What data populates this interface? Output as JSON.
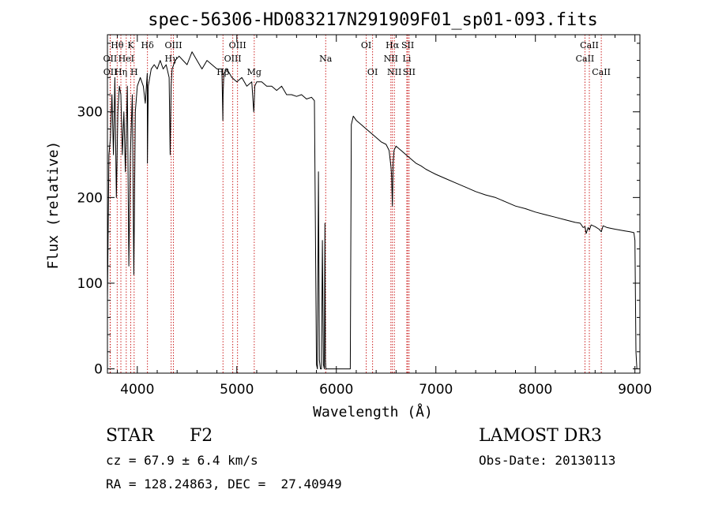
{
  "chart_data": {
    "type": "line",
    "title": "spec-56306-HD083217N291909F01_sp01-093.fits",
    "xlabel": "Wavelength (Å)",
    "ylabel": "Flux (relative)",
    "xlim": [
      3700,
      9050
    ],
    "ylim": [
      -5,
      390
    ],
    "x_ticks": [
      4000,
      5000,
      6000,
      7000,
      8000,
      9000
    ],
    "x_tick_labels": [
      "4000",
      "5000",
      "6000",
      "7000",
      "8000",
      "9000"
    ],
    "y_ticks": [
      0,
      100,
      200,
      300
    ],
    "y_tick_labels": [
      "0",
      "100",
      "200",
      "300"
    ],
    "grid": false,
    "series": [
      {
        "name": "flux",
        "color": "#000000",
        "x": [
          3700,
          3715,
          3730,
          3745,
          3760,
          3775,
          3790,
          3805,
          3820,
          3835,
          3850,
          3865,
          3880,
          3900,
          3915,
          3930,
          3950,
          3965,
          3980,
          4000,
          4030,
          4060,
          4080,
          4100,
          4102,
          4110,
          4140,
          4170,
          4200,
          4230,
          4260,
          4290,
          4320,
          4330,
          4340,
          4350,
          4380,
          4420,
          4460,
          4500,
          4550,
          4600,
          4650,
          4700,
          4750,
          4800,
          4850,
          4860,
          4862,
          4870,
          4900,
          4950,
          5000,
          5050,
          5100,
          5150,
          5170,
          5175,
          5180,
          5200,
          5250,
          5300,
          5350,
          5400,
          5450,
          5500,
          5550,
          5600,
          5650,
          5700,
          5750,
          5780,
          5800,
          5810,
          5820,
          5830,
          5840,
          5850,
          5860,
          5870,
          5880,
          5885,
          5890,
          5895,
          5900,
          5905,
          5910,
          5920,
          5950,
          6000,
          6050,
          6100,
          6130,
          6140,
          6150,
          6170,
          6200,
          6250,
          6300,
          6350,
          6400,
          6450,
          6500,
          6530,
          6550,
          6555,
          6563,
          6570,
          6580,
          6600,
          6650,
          6700,
          6750,
          6800,
          6850,
          6900,
          6950,
          7000,
          7100,
          7200,
          7300,
          7400,
          7500,
          7600,
          7700,
          7800,
          7900,
          8000,
          8100,
          8200,
          8300,
          8400,
          8450,
          8480,
          8498,
          8510,
          8530,
          8542,
          8560,
          8600,
          8640,
          8662,
          8680,
          8720,
          8760,
          8800,
          8850,
          8900,
          8950,
          8990,
          9000,
          9010,
          9020
        ],
        "values": [
          80,
          250,
          270,
          320,
          250,
          340,
          200,
          300,
          330,
          320,
          250,
          300,
          230,
          330,
          120,
          250,
          320,
          110,
          300,
          330,
          340,
          330,
          310,
          345,
          240,
          330,
          350,
          355,
          350,
          360,
          350,
          355,
          340,
          250,
          330,
          350,
          360,
          365,
          360,
          355,
          370,
          360,
          350,
          360,
          355,
          350,
          350,
          290,
          320,
          345,
          350,
          340,
          335,
          340,
          330,
          335,
          300,
          310,
          330,
          335,
          335,
          330,
          330,
          325,
          330,
          320,
          320,
          318,
          320,
          315,
          317,
          313,
          5,
          0,
          230,
          10,
          0,
          0,
          150,
          5,
          0,
          170,
          10,
          0,
          0,
          0,
          0,
          0,
          0,
          0,
          0,
          0,
          0,
          0,
          285,
          295,
          290,
          285,
          280,
          275,
          270,
          265,
          262,
          255,
          235,
          225,
          190,
          240,
          255,
          260,
          255,
          250,
          245,
          240,
          237,
          233,
          230,
          227,
          222,
          217,
          212,
          207,
          203,
          200,
          195,
          190,
          187,
          183,
          180,
          177,
          174,
          171,
          170,
          165,
          166,
          158,
          165,
          162,
          168,
          166,
          163,
          160,
          167,
          165,
          164,
          163,
          162,
          161,
          160,
          159,
          150,
          20,
          0
        ]
      }
    ],
    "line_markers": [
      {
        "label": "Hθ",
        "x": 3798,
        "row": 1
      },
      {
        "label": "OII",
        "x": 3727,
        "row": 2
      },
      {
        "label": "OII",
        "x": 3729,
        "row": 3
      },
      {
        "label": "Hη",
        "x": 3835,
        "row": 3
      },
      {
        "label": "HeI",
        "x": 3889,
        "row": 2
      },
      {
        "label": "K",
        "x": 3934,
        "row": 1
      },
      {
        "label": "H",
        "x": 3968,
        "row": 3
      },
      {
        "label": "Hδ",
        "x": 4102,
        "row": 1
      },
      {
        "label": "Hγ",
        "x": 4340,
        "row": 2
      },
      {
        "label": "OIII",
        "x": 4363,
        "row": 1
      },
      {
        "label": "Hβ",
        "x": 4861,
        "row": 3
      },
      {
        "label": "OIII",
        "x": 4959,
        "row": 2
      },
      {
        "label": "OIII",
        "x": 5007,
        "row": 1
      },
      {
        "label": "Mg",
        "x": 5175,
        "row": 3
      },
      {
        "label": "Na",
        "x": 5893,
        "row": 2
      },
      {
        "label": "OI",
        "x": 6300,
        "row": 1
      },
      {
        "label": "OI",
        "x": 6364,
        "row": 3
      },
      {
        "label": "NII",
        "x": 6548,
        "row": 2
      },
      {
        "label": "Hα",
        "x": 6563,
        "row": 1
      },
      {
        "label": "NII",
        "x": 6583,
        "row": 3
      },
      {
        "label": "Li",
        "x": 6708,
        "row": 2
      },
      {
        "label": "SII",
        "x": 6717,
        "row": 1
      },
      {
        "label": "SII",
        "x": 6731,
        "row": 3
      },
      {
        "label": "CaII",
        "x": 8498,
        "row": 2
      },
      {
        "label": "CaII",
        "x": 8542,
        "row": 1
      },
      {
        "label": "CaII",
        "x": 8662,
        "row": 3
      }
    ],
    "annotations": {
      "class": "STAR",
      "subclass": "F2",
      "survey": "LAMOST DR3",
      "cz": "cz = 67.9 ± 6.4 km/s",
      "obs_date": "Obs-Date: 20130113",
      "coords": "RA = 128.24863, DEC =  27.40949"
    },
    "colors": {
      "line": "#000000",
      "marker": "#cc2222",
      "axis": "#000000"
    }
  }
}
